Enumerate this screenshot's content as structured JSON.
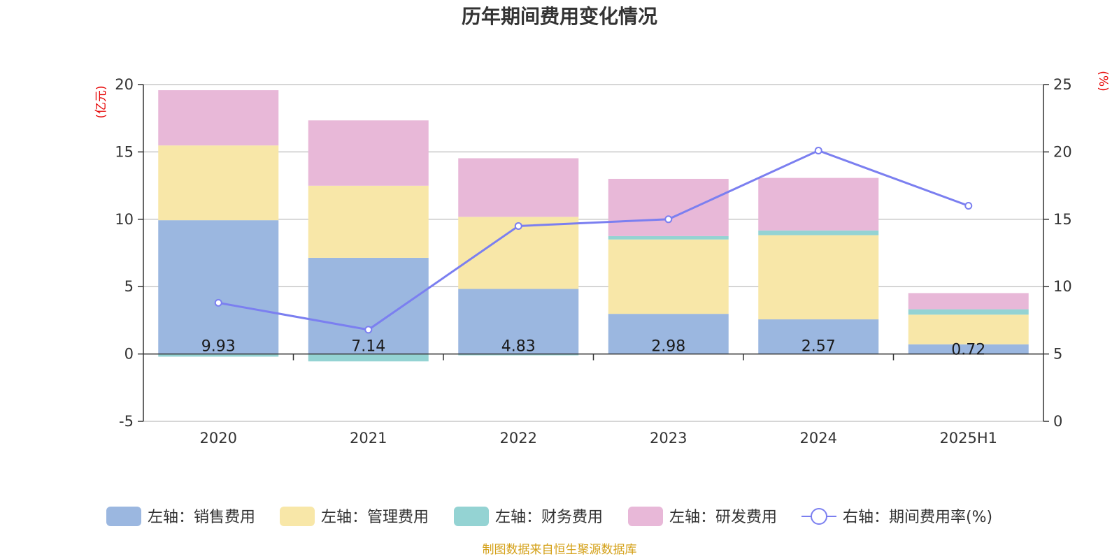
{
  "chart_data": {
    "type": "bar",
    "title": "历年期间费用变化情况",
    "categories": [
      "2020",
      "2021",
      "2022",
      "2023",
      "2024",
      "2025H1"
    ],
    "left_axis": {
      "unit": "(亿元)",
      "ylim": [
        -5,
        20
      ],
      "ticks": [
        "-5",
        "0",
        "5",
        "10",
        "15",
        "20"
      ],
      "tick_values": [
        -5,
        0,
        5,
        10,
        15,
        20
      ]
    },
    "right_axis": {
      "unit": "(%)",
      "ylim": [
        0,
        25
      ],
      "ticks": [
        "0",
        "5",
        "10",
        "15",
        "20",
        "25"
      ],
      "tick_values": [
        0,
        5,
        10,
        15,
        20,
        25
      ]
    },
    "stacked": true,
    "grid": true,
    "legend_position": "bottom",
    "series": [
      {
        "name": "左轴：销售费用",
        "axis": "left",
        "color": "#9bb7e0",
        "values": [
          9.93,
          7.14,
          4.83,
          2.98,
          2.57,
          0.72
        ],
        "labels": [
          "9.93",
          "7.14",
          "4.83",
          "2.98",
          "2.57",
          "0.72"
        ]
      },
      {
        "name": "左轴：管理费用",
        "axis": "left",
        "color": "#f8e7a8",
        "values": [
          5.55,
          5.35,
          5.35,
          5.52,
          6.25,
          2.2
        ]
      },
      {
        "name": "左轴：财务费用",
        "axis": "left",
        "color": "#94d3d3",
        "values": [
          -0.2,
          -0.55,
          -0.1,
          0.25,
          0.35,
          0.4
        ]
      },
      {
        "name": "左轴：研发费用",
        "axis": "left",
        "color": "#e8b8d8",
        "values": [
          4.1,
          4.85,
          4.35,
          4.25,
          3.9,
          1.2
        ]
      },
      {
        "name": "右轴：期间费用率(%)",
        "axis": "right",
        "type": "line",
        "color": "#7b7ff0",
        "values": [
          8.8,
          6.8,
          14.5,
          15.0,
          20.1,
          16.0
        ]
      }
    ]
  },
  "source": "制图数据来自恒生聚源数据库"
}
